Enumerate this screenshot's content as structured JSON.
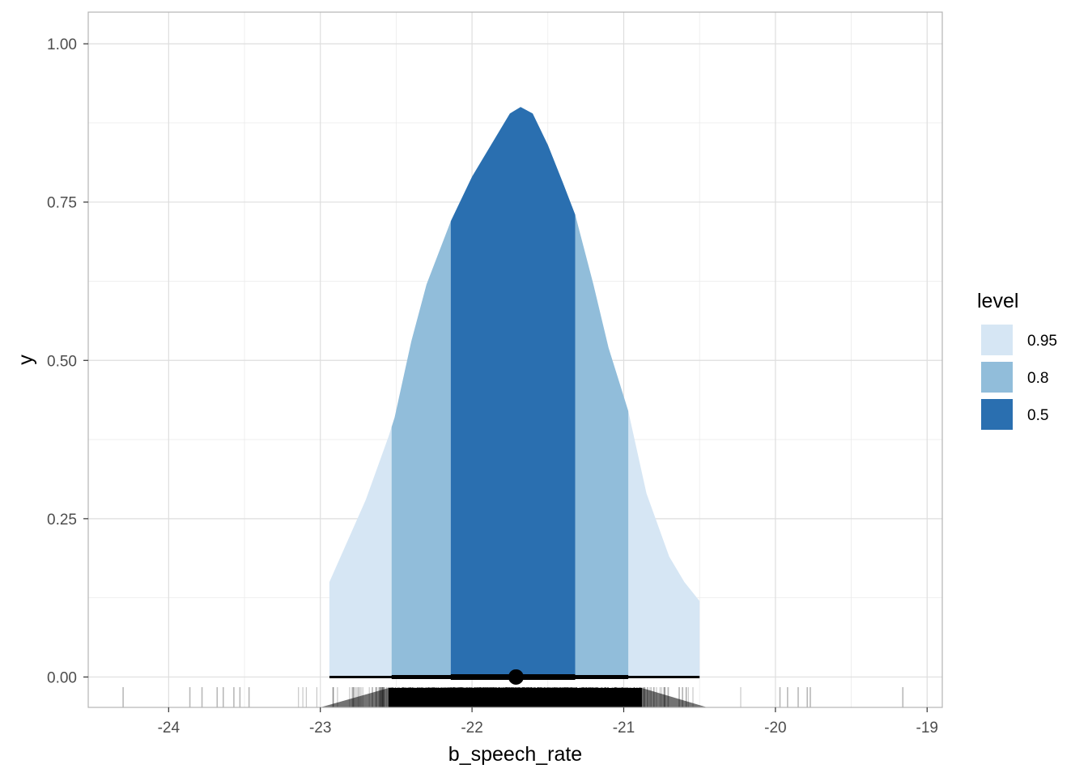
{
  "chart_data": {
    "type": "area",
    "title": "",
    "xlabel": "b_speech_rate",
    "ylabel": "y",
    "xlim": [
      -24.53,
      -18.9
    ],
    "ylim": [
      -0.048,
      1.05
    ],
    "x_ticks": [
      -24,
      -23,
      -22,
      -21,
      -20,
      -19
    ],
    "x_tick_labels": [
      "-24",
      "-23",
      "-22",
      "-21",
      "-20",
      "-19"
    ],
    "y_ticks": [
      0,
      0.25,
      0.5,
      0.75,
      1.0
    ],
    "y_tick_labels": [
      "0.00",
      "0.25",
      "0.50",
      "0.75",
      "1.00"
    ],
    "grid": true,
    "legend": {
      "title": "level",
      "position": "right",
      "entries": [
        {
          "label": "0.95",
          "color": "#d6e6f4"
        },
        {
          "label": "0.8",
          "color": "#91bdda"
        },
        {
          "label": "0.5",
          "color": "#2a6fb0"
        }
      ]
    },
    "density": {
      "x": [
        -22.94,
        -22.7,
        -22.55,
        -22.51,
        -22.4,
        -22.3,
        -22.14,
        -22.0,
        -21.9,
        -21.8,
        -21.75,
        -21.68,
        -21.6,
        -21.5,
        -21.4,
        -21.32,
        -21.2,
        -21.1,
        -20.97,
        -20.85,
        -20.7,
        -20.6,
        -20.5
      ],
      "y": [
        0.15,
        0.28,
        0.38,
        0.41,
        0.53,
        0.62,
        0.72,
        0.79,
        0.83,
        0.87,
        0.89,
        0.9,
        0.89,
        0.84,
        0.78,
        0.73,
        0.62,
        0.52,
        0.42,
        0.29,
        0.19,
        0.15,
        0.12
      ]
    },
    "intervals": [
      {
        "level": 0.95,
        "lower": -22.94,
        "upper": -20.5,
        "color": "#d6e6f4"
      },
      {
        "level": 0.8,
        "lower": -22.53,
        "upper": -20.97,
        "color": "#91bdda"
      },
      {
        "level": 0.5,
        "lower": -22.14,
        "upper": -21.32,
        "color": "#2a6fb0"
      }
    ],
    "point_estimate": {
      "x": -21.71,
      "y": 0
    },
    "interval_bars": [
      {
        "lower": -22.94,
        "upper": -20.5,
        "width": "thin"
      },
      {
        "lower": -22.53,
        "upper": -20.97,
        "width": "medium"
      },
      {
        "lower": -22.14,
        "upper": -21.32,
        "width": "thick"
      }
    ],
    "rug": {
      "x": [
        -24.3,
        -23.86,
        -23.78,
        -23.68,
        -23.64,
        -23.57,
        -23.53,
        -23.47,
        -19.77,
        -19.79,
        -19.85,
        -19.92,
        -19.97,
        -19.16
      ]
    }
  }
}
